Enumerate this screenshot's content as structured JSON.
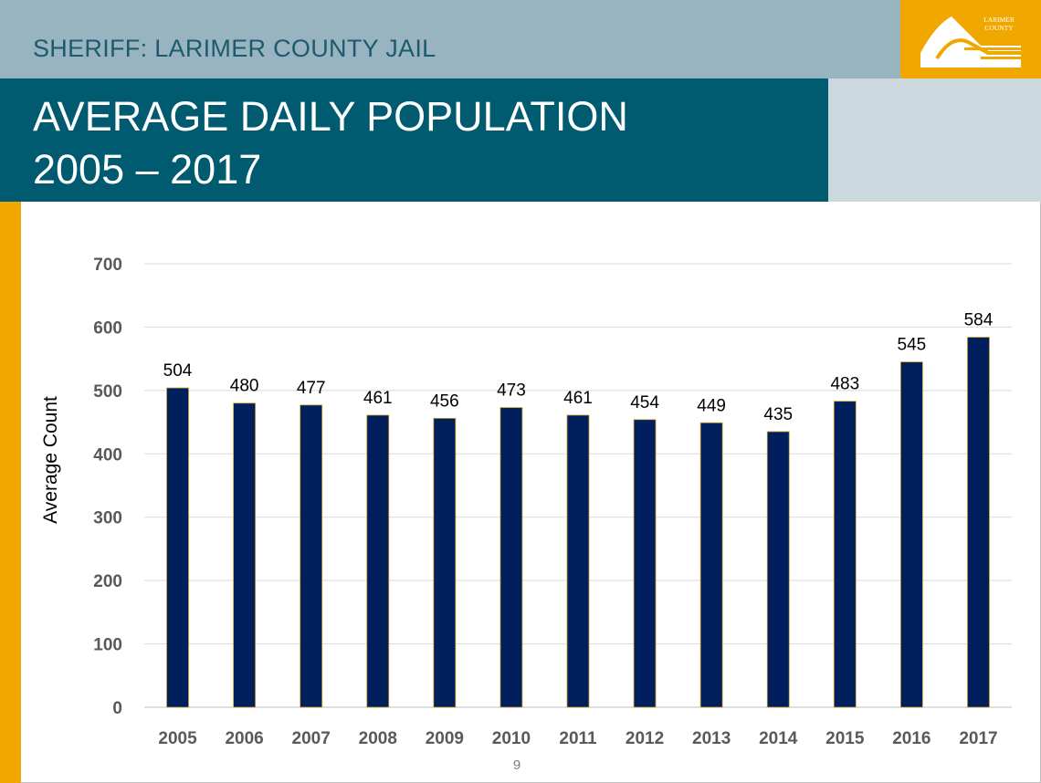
{
  "header": {
    "title": "SHERIFF:  LARIMER COUNTY JAIL",
    "title_line1": "AVERAGE DAILY POPULATION",
    "title_line2": "2005 – 2017",
    "logo_text_1": "LARIMER",
    "logo_text_2": "COUNTY"
  },
  "colors": {
    "top_band": "#98b4c1",
    "title_band": "#005b70",
    "accent": "#f0a800",
    "bar": "#001f5c"
  },
  "chart_data": {
    "type": "bar",
    "categories": [
      "2005",
      "2006",
      "2007",
      "2008",
      "2009",
      "2010",
      "2011",
      "2012",
      "2013",
      "2014",
      "2015",
      "2016",
      "2017"
    ],
    "values": [
      504,
      480,
      477,
      461,
      456,
      473,
      461,
      454,
      449,
      435,
      483,
      545,
      584
    ],
    "xlabel": "",
    "ylabel": "Average Count",
    "ylim": [
      0,
      700
    ],
    "yticks": [
      "0",
      "100",
      "200",
      "300",
      "400",
      "500",
      "600",
      "700"
    ],
    "grid": true,
    "legend": "none",
    "data_labels": true
  },
  "footer": {
    "page_number": "9"
  }
}
